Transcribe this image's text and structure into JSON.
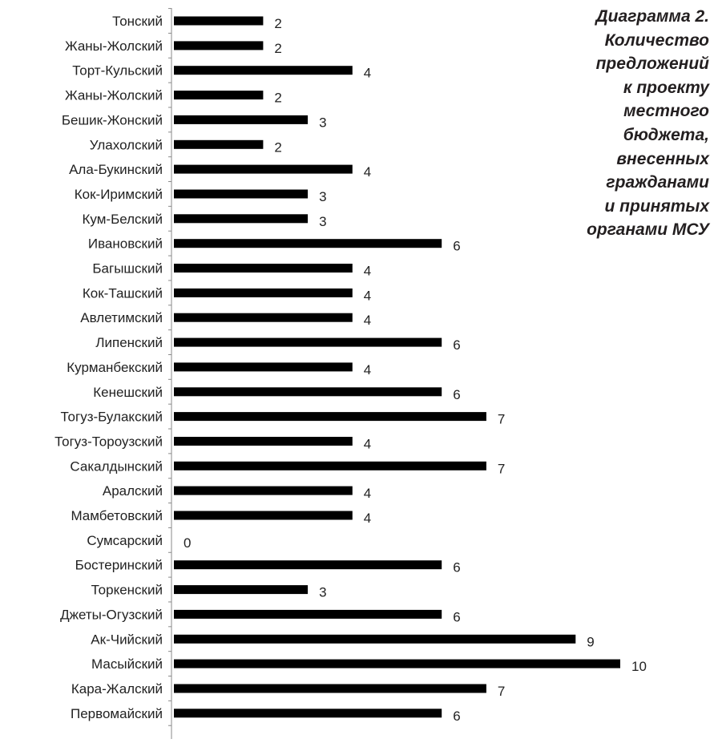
{
  "caption": {
    "lines": [
      "Диаграмма 2.",
      "Количество",
      "предложений",
      "к проекту",
      "местного",
      "бюджета,",
      "внесенных",
      "гражданами",
      "и принятых",
      "органами МСУ"
    ]
  },
  "chart_data": {
    "type": "bar",
    "orientation": "horizontal",
    "title": "",
    "xlabel": "",
    "ylabel": "",
    "xlim": [
      0,
      10
    ],
    "grid": false,
    "legend": "none",
    "bar_color": "#000000",
    "categories": [
      "Тонский",
      "Жаны-Жолский",
      "Торт-Кульский",
      "Жаны-Жолский",
      "Бешик-Жонский",
      "Улахолский",
      "Ала-Букинский",
      "Кок-Иримский",
      "Кум-Белский",
      "Ивановский",
      "Багышский",
      "Кок-Ташский",
      "Авлетимский",
      "Липенский",
      "Курманбекский",
      "Кенешский",
      "Тогуз-Булакский",
      "Тогуз-Тороузский",
      "Сакалдынский",
      "Аралский",
      "Мамбетовский",
      "Сумсарский",
      "Бостеринский",
      "Торкенский",
      "Джеты-Огузский",
      "Ак-Чийский",
      "Масыйский",
      "Кара-Жалский",
      "Первомайский"
    ],
    "values": [
      2,
      2,
      4,
      2,
      3,
      2,
      4,
      3,
      3,
      6,
      4,
      4,
      4,
      6,
      4,
      6,
      7,
      4,
      7,
      4,
      4,
      0,
      6,
      3,
      6,
      9,
      10,
      7,
      6
    ],
    "data_labels": [
      "2",
      "2",
      "4",
      "2",
      "3",
      "2",
      "4",
      "3",
      "3",
      "6",
      "4",
      "4",
      "4",
      "6",
      "4",
      "6",
      "7",
      "4",
      "7",
      "4",
      "4",
      "0",
      "6",
      "3",
      "6",
      "9",
      "10",
      "7",
      "6"
    ]
  }
}
